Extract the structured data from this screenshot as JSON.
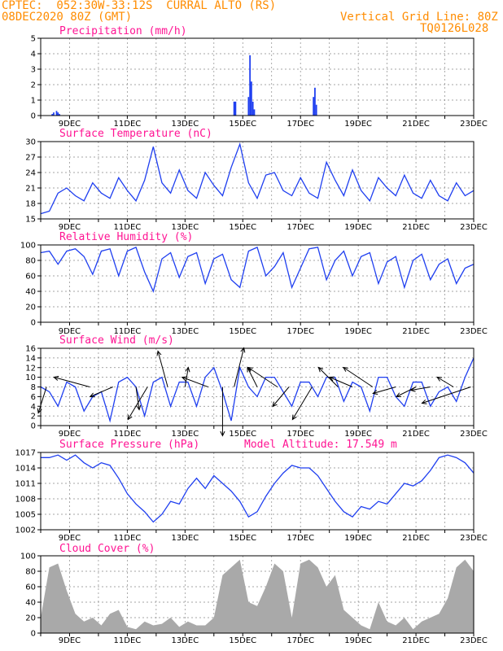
{
  "header": {
    "station": "CPTEC:  052:30W-33:12S  CURRAL ALTO (RS)",
    "run": "08DEC2020 80Z (GMT)",
    "grid": "Vertical Grid Line: 80Z",
    "code": "TQ0126L028"
  },
  "x_labels": [
    "9DEC",
    "11DEC",
    "13DEC",
    "15DEC",
    "17DEC",
    "19DEC",
    "21DEC",
    "23DEC"
  ],
  "colors": {
    "header": "#ff8c00",
    "title": "#ff1493",
    "line": "#1f3ff0",
    "bar": "#1f3ff0",
    "cloud": "#a9a9a9",
    "arrow": "#000000"
  },
  "chart_data": [
    {
      "id": "precipitation",
      "type": "bar",
      "title": "Precipitation (mm/h)",
      "ylim": [
        0,
        5
      ],
      "yticks": [
        0,
        1,
        2,
        3,
        4,
        5
      ],
      "x_range_days": [
        8.0,
        23.0
      ],
      "x": [
        8.4,
        8.45,
        8.55,
        8.6,
        8.65,
        14.7,
        14.75,
        15.2,
        15.25,
        15.3,
        15.35,
        15.4,
        17.45,
        17.5,
        17.55
      ],
      "values": [
        0.1,
        0.2,
        0.3,
        0.2,
        0.1,
        0.9,
        0.9,
        1.2,
        3.9,
        2.2,
        0.9,
        0.4,
        1.2,
        1.8,
        0.7
      ]
    },
    {
      "id": "temperature",
      "type": "line",
      "title": "Surface Temperature (nC)",
      "ylim": [
        15,
        30
      ],
      "yticks": [
        15,
        18,
        21,
        24,
        27,
        30
      ],
      "x_range_days": [
        8.0,
        23.0
      ],
      "x": [
        8.0,
        8.3,
        8.6,
        8.9,
        9.2,
        9.5,
        9.8,
        10.1,
        10.4,
        10.7,
        11.0,
        11.3,
        11.6,
        11.9,
        12.2,
        12.5,
        12.8,
        13.1,
        13.4,
        13.7,
        14.0,
        14.3,
        14.6,
        14.9,
        15.2,
        15.5,
        15.8,
        16.1,
        16.4,
        16.7,
        17.0,
        17.3,
        17.6,
        17.9,
        18.2,
        18.5,
        18.8,
        19.1,
        19.4,
        19.7,
        20.0,
        20.3,
        20.6,
        20.9,
        21.2,
        21.5,
        21.8,
        22.1,
        22.4,
        22.7,
        23.0
      ],
      "values": [
        16.0,
        16.5,
        20.0,
        21.0,
        19.5,
        18.5,
        22.0,
        20.0,
        19.0,
        23.0,
        20.5,
        18.5,
        22.5,
        29.0,
        22.0,
        20.0,
        24.5,
        20.5,
        19.0,
        24.0,
        21.5,
        19.5,
        25.0,
        29.5,
        22.0,
        19.0,
        23.5,
        24.0,
        20.5,
        19.5,
        23.0,
        20.0,
        19.0,
        26.0,
        22.5,
        19.5,
        24.5,
        20.5,
        18.5,
        23.0,
        21.0,
        19.5,
        23.5,
        20.0,
        19.0,
        22.5,
        19.5,
        18.5,
        22.0,
        19.5,
        20.5
      ]
    },
    {
      "id": "humidity",
      "type": "line",
      "title": "Relative Humidity (%)",
      "ylim": [
        0,
        100
      ],
      "yticks": [
        0,
        20,
        40,
        60,
        80,
        100
      ],
      "x_range_days": [
        8.0,
        23.0
      ],
      "x": [
        8.0,
        8.3,
        8.6,
        8.9,
        9.2,
        9.5,
        9.8,
        10.1,
        10.4,
        10.7,
        11.0,
        11.3,
        11.6,
        11.9,
        12.2,
        12.5,
        12.8,
        13.1,
        13.4,
        13.7,
        14.0,
        14.3,
        14.6,
        14.9,
        15.2,
        15.5,
        15.8,
        16.1,
        16.4,
        16.7,
        17.0,
        17.3,
        17.6,
        17.9,
        18.2,
        18.5,
        18.8,
        19.1,
        19.4,
        19.7,
        20.0,
        20.3,
        20.6,
        20.9,
        21.2,
        21.5,
        21.8,
        22.1,
        22.4,
        22.7,
        23.0
      ],
      "values": [
        90,
        92,
        75,
        92,
        95,
        85,
        62,
        92,
        95,
        60,
        92,
        97,
        65,
        40,
        82,
        90,
        58,
        85,
        90,
        50,
        82,
        88,
        55,
        45,
        92,
        97,
        60,
        72,
        90,
        45,
        70,
        95,
        97,
        55,
        80,
        92,
        60,
        85,
        90,
        50,
        78,
        85,
        45,
        80,
        88,
        55,
        75,
        82,
        50,
        70,
        75
      ]
    },
    {
      "id": "wind",
      "type": "line",
      "title": "Surface Wind (m/s)",
      "ylim": [
        0,
        16
      ],
      "yticks": [
        0,
        2,
        4,
        6,
        8,
        10,
        12,
        14,
        16
      ],
      "x_range_days": [
        8.0,
        23.0
      ],
      "x": [
        8.0,
        8.3,
        8.6,
        8.9,
        9.2,
        9.5,
        9.8,
        10.1,
        10.4,
        10.7,
        11.0,
        11.3,
        11.6,
        11.9,
        12.2,
        12.5,
        12.8,
        13.1,
        13.4,
        13.7,
        14.0,
        14.3,
        14.6,
        14.9,
        15.2,
        15.5,
        15.8,
        16.1,
        16.4,
        16.7,
        17.0,
        17.3,
        17.6,
        17.9,
        18.2,
        18.5,
        18.8,
        19.1,
        19.4,
        19.7,
        20.0,
        20.3,
        20.6,
        20.9,
        21.2,
        21.5,
        21.8,
        22.1,
        22.4,
        22.7,
        23.0
      ],
      "values": [
        8,
        7,
        4,
        9,
        8,
        3,
        6,
        7,
        1,
        9,
        10,
        8,
        2,
        9,
        10,
        4,
        9,
        9,
        4,
        10,
        12,
        7,
        1,
        12,
        8,
        6,
        10,
        10,
        7,
        4,
        9,
        9,
        6,
        10,
        10,
        5,
        9,
        8,
        3,
        10,
        10,
        6,
        4,
        9,
        9,
        4,
        7,
        8,
        5,
        10,
        14
      ],
      "arrows": [
        {
          "x": 8.2,
          "dx": -0.25,
          "dy": 0.8
        },
        {
          "x": 9.7,
          "dx": -1.1,
          "dy": -0.3
        },
        {
          "x": 10.5,
          "dx": -0.7,
          "dy": 0.3
        },
        {
          "x": 11.3,
          "dx": 0.1,
          "dy": 0.7
        },
        {
          "x": 11.7,
          "dx": -0.6,
          "dy": 1.0
        },
        {
          "x": 12.4,
          "dx": -0.3,
          "dy": -1.1
        },
        {
          "x": 13.0,
          "dx": 0.1,
          "dy": -0.6
        },
        {
          "x": 13.8,
          "dx": -0.8,
          "dy": -0.3
        },
        {
          "x": 14.3,
          "dx": 0.0,
          "dy": 1.5
        },
        {
          "x": 14.7,
          "dx": 0.3,
          "dy": -1.2
        },
        {
          "x": 15.5,
          "dx": -0.3,
          "dy": -0.6
        },
        {
          "x": 16.2,
          "dx": -0.9,
          "dy": -0.6
        },
        {
          "x": 16.6,
          "dx": -0.5,
          "dy": 0.6
        },
        {
          "x": 17.4,
          "dx": -0.6,
          "dy": 1.0
        },
        {
          "x": 18.3,
          "dx": -0.6,
          "dy": -0.6
        },
        {
          "x": 18.8,
          "dx": -0.7,
          "dy": -0.3
        },
        {
          "x": 19.5,
          "dx": -0.9,
          "dy": -0.6
        },
        {
          "x": 20.3,
          "dx": -0.7,
          "dy": 0.2
        },
        {
          "x": 21.0,
          "dx": -0.6,
          "dy": 0.3
        },
        {
          "x": 21.5,
          "dx": -0.6,
          "dy": 0.1
        },
        {
          "x": 22.3,
          "dx": -0.5,
          "dy": -0.3
        },
        {
          "x": 22.9,
          "dx": -1.5,
          "dy": 0.5
        }
      ]
    },
    {
      "id": "pressure",
      "type": "line",
      "title": "Surface Pressure (hPa)",
      "subtitle": "Model Altitude: 17.549 m",
      "ylim": [
        1002,
        1017
      ],
      "yticks": [
        1002,
        1005,
        1008,
        1011,
        1014,
        1017
      ],
      "x_range_days": [
        8.0,
        23.0
      ],
      "x": [
        8.0,
        8.3,
        8.6,
        8.9,
        9.2,
        9.5,
        9.8,
        10.1,
        10.4,
        10.7,
        11.0,
        11.3,
        11.6,
        11.9,
        12.2,
        12.5,
        12.8,
        13.1,
        13.4,
        13.7,
        14.0,
        14.3,
        14.6,
        14.9,
        15.2,
        15.5,
        15.8,
        16.1,
        16.4,
        16.7,
        17.0,
        17.3,
        17.6,
        17.9,
        18.2,
        18.5,
        18.8,
        19.1,
        19.4,
        19.7,
        20.0,
        20.3,
        20.6,
        20.9,
        21.2,
        21.5,
        21.8,
        22.1,
        22.4,
        22.7,
        23.0
      ],
      "values": [
        1016,
        1016,
        1016.5,
        1015.5,
        1016.5,
        1015,
        1014,
        1015,
        1014.5,
        1012,
        1009,
        1007,
        1005.5,
        1003.5,
        1005,
        1007.5,
        1007,
        1010,
        1012,
        1010,
        1012.5,
        1011,
        1009.5,
        1007.5,
        1004.5,
        1005.5,
        1008.5,
        1011,
        1013,
        1014.5,
        1014,
        1014,
        1012.5,
        1010,
        1007.5,
        1005.5,
        1004.5,
        1006.5,
        1006,
        1007.5,
        1007,
        1009,
        1011,
        1010.5,
        1011.5,
        1013.5,
        1016,
        1016.5,
        1016,
        1015,
        1013
      ]
    },
    {
      "id": "cloud",
      "type": "area",
      "title": "Cloud Cover (%)",
      "ylim": [
        0,
        100
      ],
      "yticks": [
        0,
        20,
        40,
        60,
        80,
        100
      ],
      "x_range_days": [
        8.0,
        23.0
      ],
      "x": [
        8.0,
        8.3,
        8.6,
        8.9,
        9.2,
        9.5,
        9.8,
        10.1,
        10.4,
        10.7,
        11.0,
        11.3,
        11.6,
        11.9,
        12.2,
        12.5,
        12.8,
        13.1,
        13.4,
        13.7,
        14.0,
        14.3,
        14.6,
        14.9,
        15.2,
        15.5,
        15.8,
        16.1,
        16.4,
        16.7,
        17.0,
        17.3,
        17.6,
        17.9,
        18.2,
        18.5,
        18.8,
        19.1,
        19.4,
        19.7,
        20.0,
        20.3,
        20.6,
        20.9,
        21.2,
        21.5,
        21.8,
        22.1,
        22.4,
        22.7,
        23.0
      ],
      "values": [
        20,
        85,
        90,
        55,
        25,
        15,
        20,
        10,
        25,
        30,
        8,
        5,
        15,
        10,
        12,
        20,
        8,
        15,
        10,
        10,
        20,
        75,
        85,
        95,
        40,
        35,
        60,
        90,
        80,
        20,
        90,
        95,
        85,
        60,
        75,
        30,
        20,
        10,
        5,
        40,
        15,
        10,
        20,
        5,
        15,
        20,
        25,
        45,
        85,
        95,
        80
      ]
    }
  ]
}
